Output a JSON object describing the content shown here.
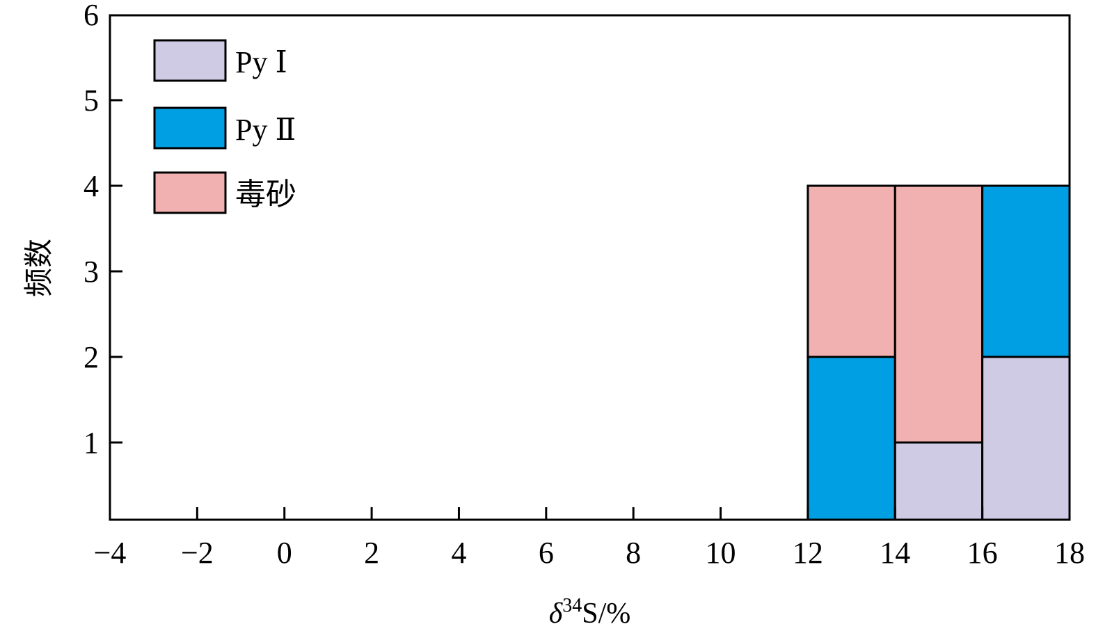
{
  "chart_data": {
    "type": "bar",
    "stacked": true,
    "xlabel": "δ34S/%",
    "xlabel_parts": {
      "delta": "δ",
      "superscript": "34",
      "rest": "S/%"
    },
    "ylabel": "频数",
    "xlim": [
      -4,
      18
    ],
    "ylim": [
      0,
      6
    ],
    "x_ticks": [
      "−4",
      "−2",
      "0",
      "2",
      "4",
      "6",
      "8",
      "10",
      "12",
      "14",
      "16",
      "18"
    ],
    "x_tick_values": [
      -4,
      -2,
      0,
      2,
      4,
      6,
      8,
      10,
      12,
      14,
      16,
      18
    ],
    "y_ticks": [
      "1",
      "2",
      "3",
      "4",
      "5",
      "6"
    ],
    "y_tick_values": [
      1,
      2,
      3,
      4,
      5,
      6
    ],
    "bins": [
      [
        12,
        14
      ],
      [
        14,
        16
      ],
      [
        16,
        18
      ]
    ],
    "series": [
      {
        "name": "Py Ⅰ",
        "color": "#cfcbe5",
        "values": [
          0,
          1,
          2
        ]
      },
      {
        "name": "Py Ⅱ",
        "color": "#009fe3",
        "values": [
          2,
          0,
          2
        ]
      },
      {
        "name": "毒砂",
        "color": "#f2b1b1",
        "values": [
          2,
          3,
          0
        ]
      }
    ],
    "legend_position": "top-left",
    "grid": false
  }
}
